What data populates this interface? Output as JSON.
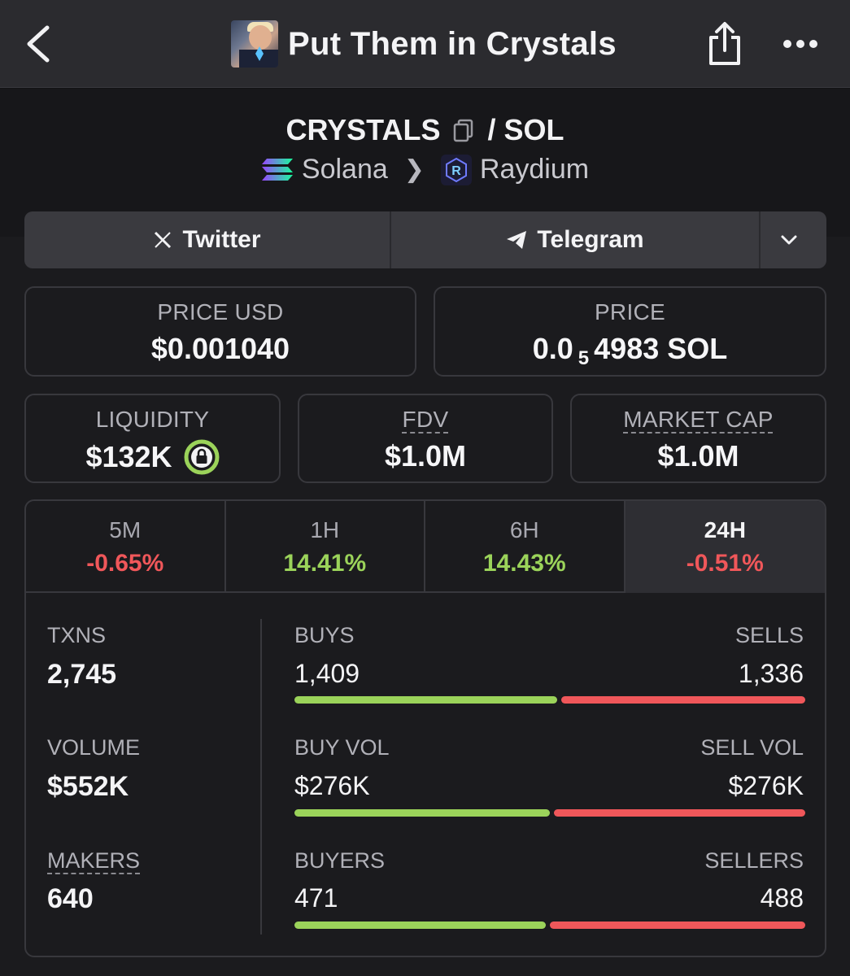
{
  "nav": {
    "title": "Put Them in Crystals",
    "back_icon": "chevron-left-icon",
    "share_icon": "share-icon",
    "more_icon": "more-horizontal-icon"
  },
  "pair": {
    "base": "CRYSTALS",
    "separator": "/",
    "quote": "SOL",
    "chain": "Solana",
    "dex": "Raydium"
  },
  "socials": {
    "twitter_label": "Twitter",
    "telegram_label": "Telegram"
  },
  "prices": {
    "usd_label": "PRICE USD",
    "usd_value": "$0.001040",
    "native_label": "PRICE",
    "native_prefix": "0.0",
    "native_zeros": "5",
    "native_digits": "4983 SOL"
  },
  "metrics": {
    "liquidity_label": "LIQUIDITY",
    "liquidity_value": "$132K",
    "fdv_label": "FDV",
    "fdv_value": "$1.0M",
    "mcap_label": "MARKET CAP",
    "mcap_value": "$1.0M"
  },
  "timeframes": [
    {
      "label": "5M",
      "change": "-0.65%",
      "trend": "neg"
    },
    {
      "label": "1H",
      "change": "14.41%",
      "trend": "pos"
    },
    {
      "label": "6H",
      "change": "14.43%",
      "trend": "pos"
    },
    {
      "label": "24H",
      "change": "-0.51%",
      "trend": "neg",
      "active": true
    }
  ],
  "stats": {
    "txns_label": "TXNS",
    "txns_value": "2,745",
    "volume_label": "VOLUME",
    "volume_value": "$552K",
    "makers_label": "MAKERS",
    "makers_value": "640",
    "buys_label": "BUYS",
    "buys_value": "1,409",
    "sells_label": "SELLS",
    "sells_value": "1,336",
    "buyvol_label": "BUY VOL",
    "buyvol_value": "$276K",
    "sellvol_label": "SELL VOL",
    "sellvol_value": "$276K",
    "buyers_label": "BUYERS",
    "buyers_value": "471",
    "sellers_label": "SELLERS",
    "sellers_value": "488"
  },
  "colors": {
    "positive": "#9bd35a",
    "negative": "#f0575a",
    "background": "#1b1b1e"
  }
}
